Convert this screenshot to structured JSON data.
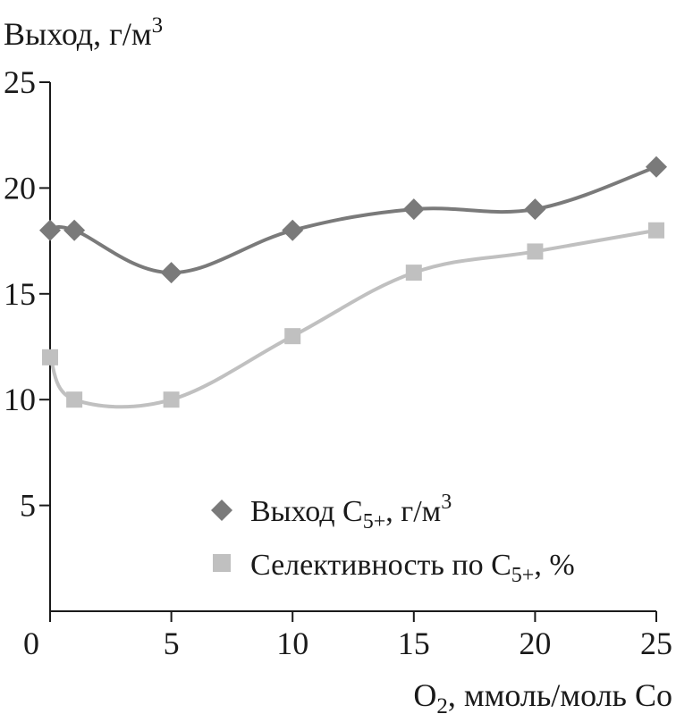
{
  "chart_data": {
    "type": "line",
    "title": "",
    "ylabel": "Выход, г/м",
    "ylabel_sup": "3",
    "xlabel_prefix": "O",
    "xlabel_sub": "2",
    "xlabel_suffix": ", ммоль/моль Co",
    "xlim": [
      0,
      25
    ],
    "ylim": [
      0,
      25
    ],
    "x_ticks": [
      0,
      5,
      10,
      15,
      20,
      25
    ],
    "y_ticks": [
      5,
      10,
      15,
      20,
      25
    ],
    "grid": false,
    "legend_position": "bottom-right",
    "series": [
      {
        "name_prefix": "Выход C",
        "name_sub": "5+",
        "name_suffix": ", г/м",
        "name_sup": "3",
        "marker": "diamond",
        "color": "#7a7a7a",
        "x": [
          0,
          1,
          5,
          10,
          15,
          20,
          25
        ],
        "y": [
          18,
          18,
          16,
          18,
          19,
          19,
          21
        ]
      },
      {
        "name_prefix": "Селективность по C",
        "name_sub": "5+",
        "name_suffix": ", %",
        "name_sup": "",
        "marker": "square",
        "color": "#c0c0c0",
        "x": [
          0,
          1,
          5,
          10,
          15,
          20,
          25
        ],
        "y": [
          12,
          10,
          10,
          13,
          16,
          17,
          18
        ]
      }
    ]
  }
}
